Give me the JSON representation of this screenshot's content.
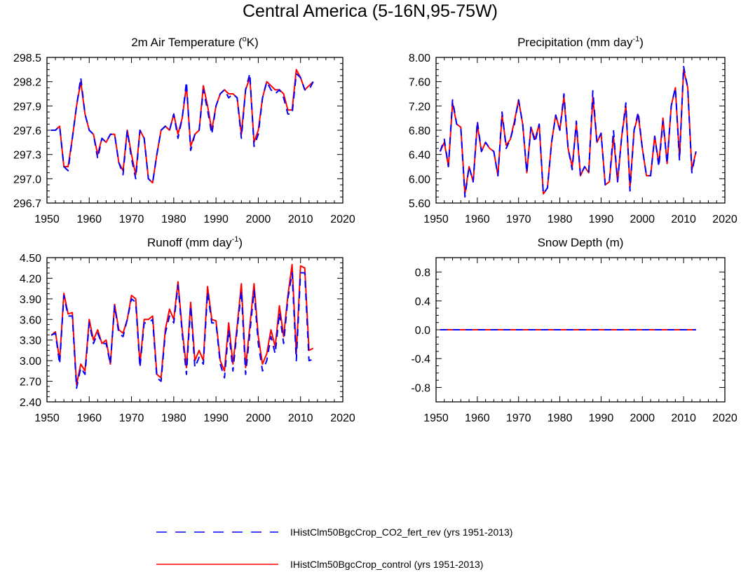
{
  "figure": {
    "title": "Central America (5-16N,95-75W)"
  },
  "legend": {
    "placement": "bottom-center",
    "entries": [
      {
        "label": "IHistClm50BgcCrop_CO2_fert_rev (yrs 1951-2013)",
        "color": "#0000ff",
        "style": "dashed"
      },
      {
        "label": "IHistClm50BgcCrop_control (yrs 1951-2013)",
        "color": "#ff0000",
        "style": "solid"
      }
    ]
  },
  "chart_data": [
    {
      "type": "line",
      "title": "2m Air Temperature (",
      "title_sup": "o",
      "title_after": "K)",
      "xlim": [
        1950,
        2020
      ],
      "xticks": [
        1950,
        1960,
        1970,
        1980,
        1990,
        2000,
        2010,
        2020
      ],
      "ylim": [
        296.7,
        298.5
      ],
      "yticks": [
        "296.7",
        "297.0",
        "297.3",
        "297.6",
        "297.9",
        "298.2",
        "298.5"
      ],
      "x_start": 1951,
      "series": [
        {
          "name": "IHistClm50BgcCrop_control (yrs 1951-2013)",
          "color": "#ff0000",
          "dash": "none",
          "values": [
            297.6,
            297.6,
            297.65,
            297.15,
            297.15,
            297.5,
            297.9,
            298.2,
            297.8,
            297.6,
            297.55,
            297.3,
            297.5,
            297.45,
            297.55,
            297.55,
            297.2,
            297.1,
            297.6,
            297.3,
            297.05,
            297.6,
            297.5,
            297.0,
            296.95,
            297.3,
            297.6,
            297.65,
            297.6,
            297.8,
            297.55,
            297.75,
            298.15,
            297.4,
            297.55,
            297.6,
            298.15,
            297.9,
            297.6,
            297.9,
            298.05,
            298.1,
            298.05,
            298.05,
            298.0,
            297.55,
            298.1,
            298.25,
            297.45,
            297.6,
            298.0,
            298.2,
            298.15,
            298.1,
            298.1,
            298.05,
            297.85,
            297.85,
            298.35,
            298.25,
            298.1,
            298.15,
            298.2
          ]
        },
        {
          "name": "IHistClm50BgcCrop_CO2_fert_rev (yrs 1951-2013)",
          "color": "#0000ff",
          "dash": "10,8",
          "values": [
            297.6,
            297.6,
            297.65,
            297.15,
            297.1,
            297.5,
            297.9,
            298.25,
            297.8,
            297.6,
            297.55,
            297.25,
            297.5,
            297.45,
            297.55,
            297.55,
            297.2,
            297.05,
            297.6,
            297.25,
            297.0,
            297.6,
            297.5,
            297.0,
            296.95,
            297.3,
            297.6,
            297.65,
            297.6,
            297.8,
            297.5,
            297.75,
            298.2,
            297.35,
            297.55,
            297.6,
            298.1,
            297.85,
            297.55,
            297.9,
            298.05,
            298.1,
            298.0,
            298.05,
            298.0,
            297.5,
            298.1,
            298.3,
            297.4,
            297.55,
            298.0,
            298.2,
            298.1,
            298.05,
            298.1,
            298.0,
            297.8,
            297.8,
            298.3,
            298.25,
            298.1,
            298.1,
            298.2
          ]
        }
      ]
    },
    {
      "type": "line",
      "title": "Precipitation (mm day",
      "title_sup": "-1",
      "title_after": ")",
      "xlim": [
        1950,
        2020
      ],
      "xticks": [
        1950,
        1960,
        1970,
        1980,
        1990,
        2000,
        2010,
        2020
      ],
      "ylim": [
        5.6,
        8.0
      ],
      "yticks": [
        "5.60",
        "6.00",
        "6.40",
        "6.80",
        "7.20",
        "7.60",
        "8.00"
      ],
      "x_start": 1951,
      "series": [
        {
          "name": "IHistClm50BgcCrop_control (yrs 1951-2013)",
          "color": "#ff0000",
          "dash": "none",
          "values": [
            6.45,
            6.6,
            6.2,
            7.25,
            6.9,
            6.85,
            5.75,
            6.2,
            5.95,
            6.9,
            6.45,
            6.6,
            6.5,
            6.45,
            6.05,
            7.05,
            6.55,
            6.65,
            6.95,
            7.3,
            6.9,
            6.1,
            6.85,
            6.65,
            6.9,
            5.75,
            5.85,
            6.6,
            7.05,
            6.8,
            7.35,
            6.5,
            6.2,
            6.9,
            6.05,
            6.2,
            6.1,
            7.35,
            6.6,
            6.75,
            5.9,
            5.95,
            6.7,
            5.95,
            6.7,
            7.2,
            5.85,
            6.8,
            7.05,
            6.5,
            6.05,
            6.05,
            6.7,
            6.25,
            7.0,
            6.25,
            7.2,
            7.5,
            6.35,
            7.8,
            7.5,
            6.15,
            6.45
          ]
        },
        {
          "name": "IHistClm50BgcCrop_CO2_fert_rev (yrs 1951-2013)",
          "color": "#0000ff",
          "dash": "10,8",
          "values": [
            6.45,
            6.65,
            6.2,
            7.3,
            6.9,
            6.85,
            5.7,
            6.2,
            5.95,
            6.95,
            6.45,
            6.6,
            6.5,
            6.45,
            6.05,
            7.1,
            6.5,
            6.65,
            6.9,
            7.3,
            6.9,
            6.1,
            6.85,
            6.6,
            6.9,
            5.75,
            5.85,
            6.6,
            7.05,
            6.8,
            7.4,
            6.5,
            6.15,
            6.95,
            6.05,
            6.2,
            6.1,
            7.45,
            6.6,
            6.75,
            5.9,
            5.95,
            6.8,
            5.95,
            6.7,
            7.25,
            5.8,
            6.8,
            7.1,
            6.5,
            6.05,
            6.05,
            6.7,
            6.2,
            6.95,
            6.25,
            7.2,
            7.5,
            6.3,
            7.85,
            7.5,
            6.1,
            6.45
          ]
        }
      ]
    },
    {
      "type": "line",
      "title": "Runoff (mm day",
      "title_sup": "-1",
      "title_after": ")",
      "xlim": [
        1950,
        2020
      ],
      "xticks": [
        1950,
        1960,
        1970,
        1980,
        1990,
        2000,
        2010,
        2020
      ],
      "ylim": [
        2.4,
        4.5
      ],
      "yticks": [
        "2.40",
        "2.70",
        "3.00",
        "3.30",
        "3.60",
        "3.90",
        "4.20",
        "4.50"
      ],
      "x_start": 1951,
      "series": [
        {
          "name": "IHistClm50BgcCrop_control (yrs 1951-2013)",
          "color": "#ff0000",
          "dash": "none",
          "values": [
            3.37,
            3.42,
            3.0,
            3.98,
            3.68,
            3.7,
            2.65,
            2.95,
            2.85,
            3.6,
            3.3,
            3.45,
            3.25,
            3.3,
            2.95,
            3.82,
            3.45,
            3.4,
            3.6,
            3.95,
            3.9,
            2.95,
            3.6,
            3.6,
            3.65,
            2.8,
            2.75,
            3.45,
            3.75,
            3.6,
            4.15,
            3.45,
            2.9,
            3.85,
            3.0,
            3.15,
            3.0,
            4.08,
            3.6,
            3.58,
            3.0,
            2.85,
            3.55,
            2.95,
            3.5,
            4.12,
            2.9,
            3.5,
            4.12,
            3.35,
            2.95,
            3.1,
            3.45,
            3.2,
            3.8,
            3.35,
            3.95,
            4.4,
            3.1,
            4.38,
            4.35,
            3.15,
            3.18
          ]
        },
        {
          "name": "IHistClm50BgcCrop_CO2_fert_rev (yrs 1951-2013)",
          "color": "#0000ff",
          "dash": "10,8",
          "values": [
            3.37,
            3.4,
            2.95,
            3.95,
            3.65,
            3.65,
            2.6,
            2.9,
            2.8,
            3.55,
            3.25,
            3.4,
            3.25,
            3.25,
            2.95,
            3.8,
            3.4,
            3.35,
            3.6,
            3.9,
            3.85,
            2.9,
            3.55,
            3.55,
            3.6,
            2.75,
            2.7,
            3.4,
            3.65,
            3.55,
            4.1,
            3.4,
            2.8,
            3.8,
            2.9,
            3.05,
            2.95,
            4.0,
            3.55,
            3.55,
            2.95,
            2.75,
            3.45,
            2.85,
            3.45,
            4.02,
            2.8,
            3.4,
            4.02,
            3.25,
            2.85,
            3.0,
            3.35,
            3.1,
            3.7,
            3.25,
            3.9,
            4.28,
            3.0,
            4.28,
            4.28,
            3.0,
            3.02
          ]
        }
      ]
    },
    {
      "type": "line",
      "title": "Snow Depth (m)",
      "title_sup": "",
      "title_after": "",
      "xlim": [
        1950,
        2020
      ],
      "xticks": [
        1950,
        1960,
        1970,
        1980,
        1990,
        2000,
        2010,
        2020
      ],
      "ylim": [
        -1.0,
        1.0
      ],
      "yticks": [
        "-0.8",
        "-0.4",
        "0.0",
        "0.4",
        "0.8"
      ],
      "ytick_values": [
        -0.8,
        -0.4,
        0.0,
        0.4,
        0.8
      ],
      "x_start": 1951,
      "constant": 0.0,
      "series": [
        {
          "name": "IHistClm50BgcCrop_control (yrs 1951-2013)",
          "color": "#ff0000",
          "dash": "none",
          "constant": 0.0
        },
        {
          "name": "IHistClm50BgcCrop_CO2_fert_rev (yrs 1951-2013)",
          "color": "#0000ff",
          "dash": "10,8",
          "constant": 0.0
        }
      ]
    }
  ]
}
